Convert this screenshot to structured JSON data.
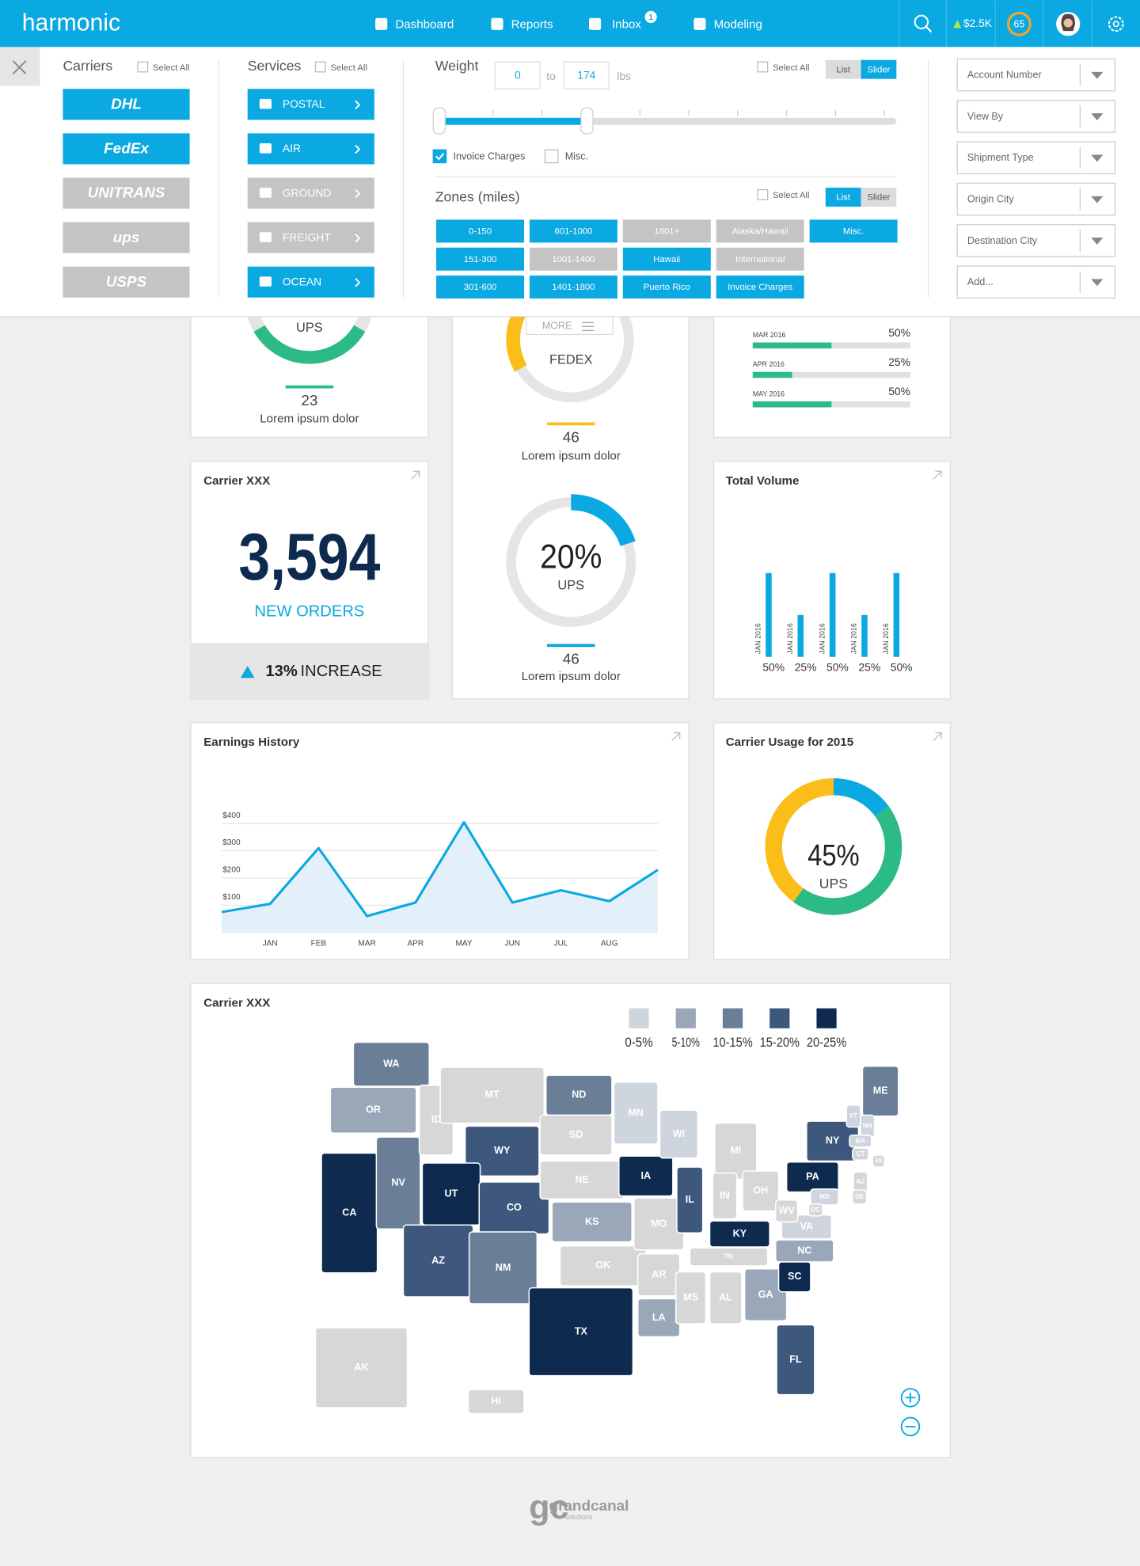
{
  "header": {
    "brand": "harmonic",
    "nav": [
      {
        "label": "Dashboard"
      },
      {
        "label": "Reports"
      },
      {
        "label": "Inbox",
        "badge": "1"
      },
      {
        "label": "Modeling"
      }
    ],
    "balance": "$2.5K",
    "score": "65"
  },
  "filters": {
    "carriers": {
      "title": "Carriers",
      "select_all": "Select All",
      "items": [
        {
          "label": "DHL",
          "active": true
        },
        {
          "label": "FedEx",
          "active": true
        },
        {
          "label": "UNITRANS",
          "active": false
        },
        {
          "label": "ups",
          "active": false
        },
        {
          "label": "USPS",
          "active": false
        }
      ]
    },
    "services": {
      "title": "Services",
      "select_all": "Select All",
      "items": [
        {
          "label": "POSTAL",
          "active": true
        },
        {
          "label": "AIR",
          "active": true
        },
        {
          "label": "GROUND",
          "active": false
        },
        {
          "label": "FREIGHT",
          "active": false
        },
        {
          "label": "OCEAN",
          "active": true
        }
      ]
    },
    "weight": {
      "title": "Weight",
      "min": "0",
      "to": "to",
      "max": "174",
      "unit": "lbs",
      "select_all": "Select All",
      "view_toggle": [
        "List",
        "Slider"
      ],
      "active_view": 1,
      "options": [
        {
          "label": "Invoice Charges",
          "checked": true
        },
        {
          "label": "Misc.",
          "checked": false
        }
      ]
    },
    "zones": {
      "title": "Zones (miles)",
      "select_all": "Select All",
      "view_toggle": [
        "List",
        "Slider"
      ],
      "active_view": 0,
      "items": [
        {
          "label": "0-150",
          "active": true
        },
        {
          "label": "601-1000",
          "active": true
        },
        {
          "label": "1801+",
          "active": false
        },
        {
          "label": "Alaska/Hawaii",
          "active": false
        },
        {
          "label": "Misc.",
          "active": true
        },
        {
          "label": "151-300",
          "active": true
        },
        {
          "label": "1001-1400",
          "active": false
        },
        {
          "label": "Hawaii",
          "active": true
        },
        {
          "label": "International",
          "active": false
        },
        {
          "label": "301-600",
          "active": true
        },
        {
          "label": "1401-1800",
          "active": true
        },
        {
          "label": "Puerto Rico",
          "active": true
        },
        {
          "label": "Invoice Charges",
          "active": true
        }
      ]
    },
    "dropdowns": [
      "Account Number",
      "View By",
      "Shipment Type",
      "Origin City",
      "Destination City",
      "Add..."
    ]
  },
  "cards": {
    "ups_summary": {
      "name": "UPS",
      "count": "23",
      "caption": "Lorem ipsum dolor"
    },
    "fedex_summary": {
      "more": "MORE",
      "name": "FEDEX",
      "count": "46",
      "caption": "Lorem ipsum dolor"
    },
    "ups_share": {
      "count": "46",
      "caption": "Lorem ipsum dolor"
    },
    "orders": {
      "title": "Carrier XXX",
      "value": "3,594",
      "caption": "NEW ORDERS",
      "change": "13%",
      "change_label": "INCREASE"
    }
  },
  "chart_data": [
    {
      "type": "progress",
      "categories": [
        "MAR 2016",
        "APR 2016",
        "MAY 2016"
      ],
      "values": [
        50,
        25,
        50
      ],
      "value_labels": [
        "50%",
        "25%",
        "50%"
      ],
      "xlim": [
        0,
        100
      ],
      "color": "#2dbb85"
    },
    {
      "type": "donut",
      "values": [
        20
      ],
      "value_labels": [
        "20%"
      ],
      "names": [
        "UPS"
      ],
      "ylim": [
        0,
        100
      ],
      "color": "#0aa9e1"
    },
    {
      "type": "bar",
      "title": "Total Volume",
      "categories": [
        "JAN 2016",
        "JAN 2016",
        "JAN 2016",
        "JAN 2016",
        "JAN 2016"
      ],
      "values": [
        50,
        25,
        50,
        25,
        50
      ],
      "value_labels": [
        "50%",
        "25%",
        "50%",
        "25%",
        "50%"
      ],
      "ylim": [
        0,
        100
      ],
      "color": "#0aa9e1"
    },
    {
      "type": "line",
      "title": "Earnings History",
      "categories": [
        null,
        "JAN",
        "FEB",
        "MAR",
        "APR",
        "MAY",
        "JUN",
        "JUL",
        "AUG",
        null
      ],
      "values": [
        75,
        105,
        310,
        60,
        110,
        405,
        110,
        155,
        115,
        230
      ],
      "ylim": [
        0,
        420
      ],
      "yticks": [
        0,
        {
          "value": 100,
          "label": "$100"
        },
        {
          "value": 200,
          "label": "$200"
        },
        {
          "value": 300,
          "label": "$300"
        },
        {
          "value": 400,
          "label": "$400"
        }
      ],
      "grid": true,
      "color": "#0aa9e1",
      "fill": "#e3f0fa"
    },
    {
      "type": "donut",
      "title": "Carrier Usage for 2015",
      "values": [
        15,
        45,
        40
      ],
      "value_labels": [
        null,
        "45%",
        null
      ],
      "names": [
        null,
        "UPS",
        null
      ],
      "colors": [
        "#0aa9e1",
        "#2dbb85",
        "#fbbd19"
      ]
    }
  ],
  "map": {
    "title": "Carrier XXX",
    "legend": [
      {
        "label": "0-5%",
        "color": "#cfd5dd"
      },
      {
        "label": "5-10%",
        "color": "#9aa7b8"
      },
      {
        "label": "10-15%",
        "color": "#6a7e98"
      },
      {
        "label": "15-20%",
        "color": "#3d587c"
      },
      {
        "label": "20-25%",
        "color": "#0e2a4e"
      }
    ],
    "no_data_color": "#d7d7d7",
    "states": [
      {
        "label": "WA",
        "level": 2
      },
      {
        "label": "OR",
        "level": 1
      },
      {
        "label": "CA",
        "level": 4
      },
      {
        "label": "NV",
        "level": 2
      },
      {
        "label": "ID",
        "level": null
      },
      {
        "label": "MT",
        "level": null
      },
      {
        "label": "WY",
        "level": 3
      },
      {
        "label": "UT",
        "level": 4
      },
      {
        "label": "CO",
        "level": 3
      },
      {
        "label": "AZ",
        "level": 3
      },
      {
        "label": "NM",
        "level": 2
      },
      {
        "label": "ND",
        "level": 2
      },
      {
        "label": "SD",
        "level": null
      },
      {
        "label": "NE",
        "level": null
      },
      {
        "label": "KS",
        "level": 1
      },
      {
        "label": "OK",
        "level": null
      },
      {
        "label": "TX",
        "level": 4
      },
      {
        "label": "MN",
        "level": 0
      },
      {
        "label": "IA",
        "level": 4
      },
      {
        "label": "MO",
        "level": null
      },
      {
        "label": "AR",
        "level": null
      },
      {
        "label": "LA",
        "level": 1
      },
      {
        "label": "WI",
        "level": 0
      },
      {
        "label": "IL",
        "level": 3
      },
      {
        "label": "MI",
        "level": null
      },
      {
        "label": "IN",
        "level": null
      },
      {
        "label": "OH",
        "level": null
      },
      {
        "label": "KY",
        "level": 4
      },
      {
        "label": "TN",
        "level": null
      },
      {
        "label": "MS",
        "level": null
      },
      {
        "label": "AL",
        "level": null
      },
      {
        "label": "GA",
        "level": 1
      },
      {
        "label": "FL",
        "level": 3
      },
      {
        "label": "SC",
        "level": 4
      },
      {
        "label": "NC",
        "level": 1
      },
      {
        "label": "VA",
        "level": 0
      },
      {
        "label": "WV",
        "level": null
      },
      {
        "label": "PA",
        "level": 4
      },
      {
        "label": "NY",
        "level": 3
      },
      {
        "label": "ME",
        "level": 2
      },
      {
        "label": "VT",
        "level": 0
      },
      {
        "label": "NH",
        "level": 0
      },
      {
        "label": "MA",
        "level": 0
      },
      {
        "label": "CT",
        "level": 0
      },
      {
        "label": "RI",
        "level": null
      },
      {
        "label": "NJ",
        "level": null
      },
      {
        "label": "DE",
        "level": null
      },
      {
        "label": "MD",
        "level": 0
      },
      {
        "label": "DC",
        "level": null
      },
      {
        "label": "AK",
        "level": null
      },
      {
        "label": "HI",
        "level": null
      }
    ]
  },
  "footer": {
    "logo": "gc",
    "name": "grandcanal",
    "tagline": "solutions"
  }
}
